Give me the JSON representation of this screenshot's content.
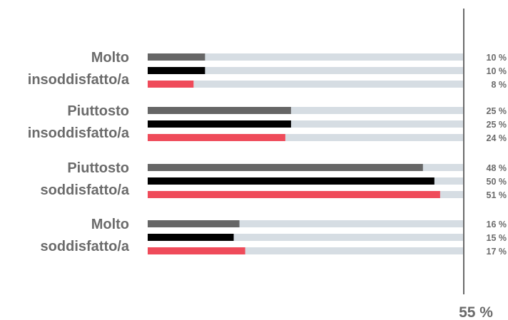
{
  "chart_data": {
    "type": "bar",
    "orientation": "horizontal",
    "title": "",
    "xlabel": "",
    "ylabel": "",
    "xlim": [
      0,
      55
    ],
    "axis_max_label": "55 %",
    "value_suffix": " %",
    "track_color": "#d6dde3",
    "categories": [
      {
        "label_lines": [
          "Molto",
          "insoddisfatto/a"
        ],
        "values": [
          10,
          10,
          8
        ]
      },
      {
        "label_lines": [
          "Piuttosto",
          "insoddisfatto/a"
        ],
        "values": [
          25,
          25,
          24
        ]
      },
      {
        "label_lines": [
          "Piuttosto",
          "soddisfatto/a"
        ],
        "values": [
          48,
          50,
          51
        ]
      },
      {
        "label_lines": [
          "Molto",
          "soddisfatto/a"
        ],
        "values": [
          16,
          15,
          17
        ]
      }
    ],
    "series": [
      {
        "color": "#666666"
      },
      {
        "color": "#000000"
      },
      {
        "color": "#ef4b5a"
      }
    ]
  }
}
